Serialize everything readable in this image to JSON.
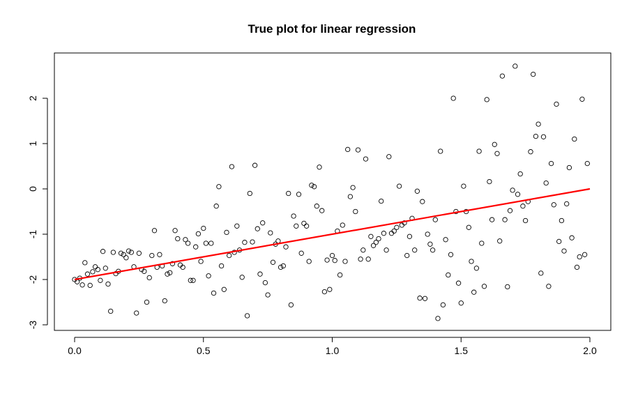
{
  "chart_data": {
    "type": "scatter",
    "title": "True plot for linear regression",
    "xlabel": "",
    "ylabel": "",
    "xlim": [
      0.0,
      2.0
    ],
    "ylim": [
      -3.0,
      2.8
    ],
    "x_ticks": [
      0.0,
      0.5,
      1.0,
      1.5,
      2.0
    ],
    "x_tick_labels": [
      "0.0",
      "0.5",
      "1.0",
      "1.5",
      "2.0"
    ],
    "y_ticks": [
      -3,
      -2,
      -1,
      0,
      1,
      2
    ],
    "y_tick_labels": [
      "-3",
      "-2",
      "-1",
      "0",
      "1",
      "2"
    ],
    "grid": false,
    "line": {
      "color": "#ff0000",
      "x": [
        0.0,
        2.0
      ],
      "y": [
        -2.0,
        0.0
      ]
    },
    "points": [
      [
        0.0,
        -2.0
      ],
      [
        0.01,
        -2.05
      ],
      [
        0.02,
        -1.97
      ],
      [
        0.03,
        -2.12
      ],
      [
        0.04,
        -1.63
      ],
      [
        0.05,
        -1.88
      ],
      [
        0.06,
        -2.13
      ],
      [
        0.07,
        -1.83
      ],
      [
        0.08,
        -1.72
      ],
      [
        0.09,
        -1.78
      ],
      [
        0.1,
        -2.02
      ],
      [
        0.11,
        -1.38
      ],
      [
        0.12,
        -1.75
      ],
      [
        0.13,
        -2.1
      ],
      [
        0.14,
        -2.7
      ],
      [
        0.15,
        -1.4
      ],
      [
        0.16,
        -1.87
      ],
      [
        0.17,
        -1.82
      ],
      [
        0.18,
        -1.42
      ],
      [
        0.19,
        -1.45
      ],
      [
        0.2,
        -1.52
      ],
      [
        0.21,
        -1.37
      ],
      [
        0.22,
        -1.4
      ],
      [
        0.23,
        -1.72
      ],
      [
        0.24,
        -2.74
      ],
      [
        0.25,
        -1.42
      ],
      [
        0.26,
        -1.78
      ],
      [
        0.27,
        -1.82
      ],
      [
        0.28,
        -2.5
      ],
      [
        0.29,
        -1.96
      ],
      [
        0.3,
        -1.47
      ],
      [
        0.31,
        -0.92
      ],
      [
        0.32,
        -1.73
      ],
      [
        0.33,
        -1.45
      ],
      [
        0.34,
        -1.7
      ],
      [
        0.35,
        -2.47
      ],
      [
        0.36,
        -1.88
      ],
      [
        0.37,
        -1.85
      ],
      [
        0.38,
        -1.65
      ],
      [
        0.39,
        -0.92
      ],
      [
        0.4,
        -1.1
      ],
      [
        0.41,
        -1.68
      ],
      [
        0.42,
        -1.73
      ],
      [
        0.43,
        -1.12
      ],
      [
        0.44,
        -1.2
      ],
      [
        0.45,
        -2.02
      ],
      [
        0.46,
        -2.02
      ],
      [
        0.47,
        -1.28
      ],
      [
        0.48,
        -0.99
      ],
      [
        0.49,
        -1.6
      ],
      [
        0.5,
        -0.87
      ],
      [
        0.51,
        -1.2
      ],
      [
        0.52,
        -1.92
      ],
      [
        0.53,
        -1.2
      ],
      [
        0.54,
        -2.3
      ],
      [
        0.55,
        -0.38
      ],
      [
        0.56,
        0.05
      ],
      [
        0.57,
        -1.7
      ],
      [
        0.58,
        -2.22
      ],
      [
        0.59,
        -0.96
      ],
      [
        0.6,
        -1.47
      ],
      [
        0.61,
        0.49
      ],
      [
        0.62,
        -1.4
      ],
      [
        0.63,
        -0.82
      ],
      [
        0.64,
        -1.35
      ],
      [
        0.65,
        -1.95
      ],
      [
        0.66,
        -1.18
      ],
      [
        0.67,
        -2.8
      ],
      [
        0.68,
        -0.1
      ],
      [
        0.69,
        -1.17
      ],
      [
        0.7,
        0.52
      ],
      [
        0.71,
        -0.88
      ],
      [
        0.72,
        -1.88
      ],
      [
        0.73,
        -0.75
      ],
      [
        0.74,
        -2.07
      ],
      [
        0.75,
        -2.34
      ],
      [
        0.76,
        -0.97
      ],
      [
        0.77,
        -1.62
      ],
      [
        0.78,
        -1.22
      ],
      [
        0.79,
        -1.15
      ],
      [
        0.8,
        -1.73
      ],
      [
        0.81,
        -1.7
      ],
      [
        0.82,
        -1.28
      ],
      [
        0.83,
        -0.1
      ],
      [
        0.84,
        -2.56
      ],
      [
        0.85,
        -0.6
      ],
      [
        0.86,
        -0.82
      ],
      [
        0.87,
        -0.12
      ],
      [
        0.88,
        -1.42
      ],
      [
        0.89,
        -0.76
      ],
      [
        0.9,
        -0.82
      ],
      [
        0.91,
        -1.6
      ],
      [
        0.92,
        0.08
      ],
      [
        0.93,
        0.05
      ],
      [
        0.94,
        -0.38
      ],
      [
        0.95,
        0.48
      ],
      [
        0.96,
        -0.48
      ],
      [
        0.97,
        -2.27
      ],
      [
        0.98,
        -1.57
      ],
      [
        0.99,
        -2.22
      ],
      [
        1.0,
        -1.47
      ],
      [
        1.01,
        -1.58
      ],
      [
        1.02,
        -0.93
      ],
      [
        1.03,
        -1.9
      ],
      [
        1.04,
        -0.8
      ],
      [
        1.05,
        -1.6
      ],
      [
        1.06,
        0.87
      ],
      [
        1.07,
        -0.17
      ],
      [
        1.08,
        0.03
      ],
      [
        1.09,
        -0.5
      ],
      [
        1.1,
        0.86
      ],
      [
        1.11,
        -1.55
      ],
      [
        1.12,
        -1.35
      ],
      [
        1.13,
        0.66
      ],
      [
        1.14,
        -1.55
      ],
      [
        1.15,
        -1.05
      ],
      [
        1.16,
        -1.25
      ],
      [
        1.17,
        -1.18
      ],
      [
        1.18,
        -1.1
      ],
      [
        1.19,
        -0.27
      ],
      [
        1.2,
        -0.98
      ],
      [
        1.21,
        -1.35
      ],
      [
        1.22,
        0.71
      ],
      [
        1.23,
        -0.98
      ],
      [
        1.24,
        -0.93
      ],
      [
        1.25,
        -0.85
      ],
      [
        1.26,
        0.06
      ],
      [
        1.27,
        -0.8
      ],
      [
        1.28,
        -0.75
      ],
      [
        1.29,
        -1.47
      ],
      [
        1.3,
        -1.05
      ],
      [
        1.31,
        -0.65
      ],
      [
        1.32,
        -1.35
      ],
      [
        1.33,
        -0.05
      ],
      [
        1.34,
        -2.41
      ],
      [
        1.35,
        -0.28
      ],
      [
        1.36,
        -2.42
      ],
      [
        1.37,
        -1.0
      ],
      [
        1.38,
        -1.22
      ],
      [
        1.39,
        -1.35
      ],
      [
        1.4,
        -0.68
      ],
      [
        1.41,
        -2.86
      ],
      [
        1.42,
        0.83
      ],
      [
        1.43,
        -2.56
      ],
      [
        1.44,
        -1.12
      ],
      [
        1.45,
        -1.9
      ],
      [
        1.46,
        -1.45
      ],
      [
        1.47,
        2.0
      ],
      [
        1.48,
        -0.5
      ],
      [
        1.49,
        -2.08
      ],
      [
        1.5,
        -2.52
      ],
      [
        1.51,
        0.06
      ],
      [
        1.52,
        -0.5
      ],
      [
        1.53,
        -0.85
      ],
      [
        1.54,
        -1.6
      ],
      [
        1.55,
        -2.28
      ],
      [
        1.56,
        -1.75
      ],
      [
        1.57,
        0.83
      ],
      [
        1.58,
        -1.2
      ],
      [
        1.59,
        -2.15
      ],
      [
        1.6,
        1.97
      ],
      [
        1.61,
        0.16
      ],
      [
        1.62,
        -0.68
      ],
      [
        1.63,
        0.98
      ],
      [
        1.64,
        0.78
      ],
      [
        1.65,
        -1.15
      ],
      [
        1.66,
        2.49
      ],
      [
        1.67,
        -0.68
      ],
      [
        1.68,
        -2.16
      ],
      [
        1.69,
        -0.48
      ],
      [
        1.7,
        -0.03
      ],
      [
        1.71,
        2.71
      ],
      [
        1.72,
        -0.12
      ],
      [
        1.73,
        0.33
      ],
      [
        1.74,
        -0.38
      ],
      [
        1.75,
        -0.7
      ],
      [
        1.76,
        -0.28
      ],
      [
        1.77,
        0.82
      ],
      [
        1.78,
        2.53
      ],
      [
        1.79,
        1.16
      ],
      [
        1.8,
        1.43
      ],
      [
        1.81,
        -1.86
      ],
      [
        1.82,
        1.15
      ],
      [
        1.83,
        0.13
      ],
      [
        1.84,
        -2.15
      ],
      [
        1.85,
        0.56
      ],
      [
        1.86,
        -0.35
      ],
      [
        1.87,
        1.87
      ],
      [
        1.88,
        -1.16
      ],
      [
        1.89,
        -0.7
      ],
      [
        1.9,
        -1.37
      ],
      [
        1.91,
        -0.33
      ],
      [
        1.92,
        0.47
      ],
      [
        1.93,
        -1.08
      ],
      [
        1.94,
        1.1
      ],
      [
        1.95,
        -1.73
      ],
      [
        1.96,
        -1.5
      ],
      [
        1.97,
        1.98
      ],
      [
        1.98,
        -1.45
      ],
      [
        1.99,
        0.56
      ]
    ]
  }
}
